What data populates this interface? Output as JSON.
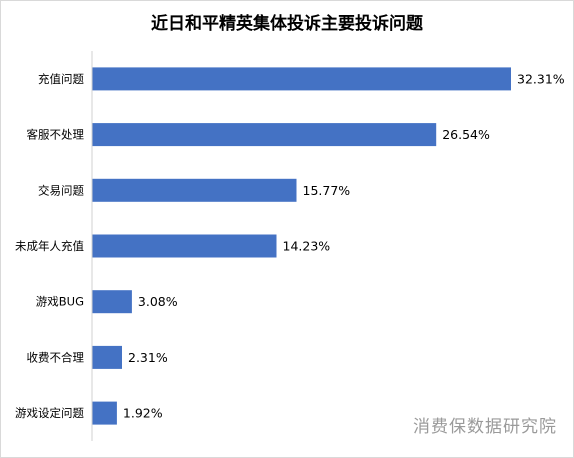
{
  "title": "近日和平精英集体投诉主要投诉问题",
  "watermark": "消费保数据研究院",
  "colors": {
    "bar": "#4472C4",
    "axis": "#d0d0d0",
    "text": "#000000"
  },
  "chart_data": {
    "type": "bar",
    "orientation": "horizontal",
    "title": "近日和平精英集体投诉主要投诉问题",
    "categories": [
      "充值问题",
      "客服不处理",
      "交易问题",
      "未成年人充值",
      "游戏BUG",
      "收费不合理",
      "游戏设定问题"
    ],
    "values": [
      32.31,
      26.54,
      15.77,
      14.23,
      3.08,
      2.31,
      1.92
    ],
    "labels": [
      "32.31%",
      "26.54%",
      "15.77%",
      "14.23%",
      "3.08%",
      "2.31%",
      "1.92%"
    ],
    "xlabel": "",
    "ylabel": "",
    "xlim": [
      0,
      32.31
    ],
    "grid": false,
    "legend": "none"
  }
}
